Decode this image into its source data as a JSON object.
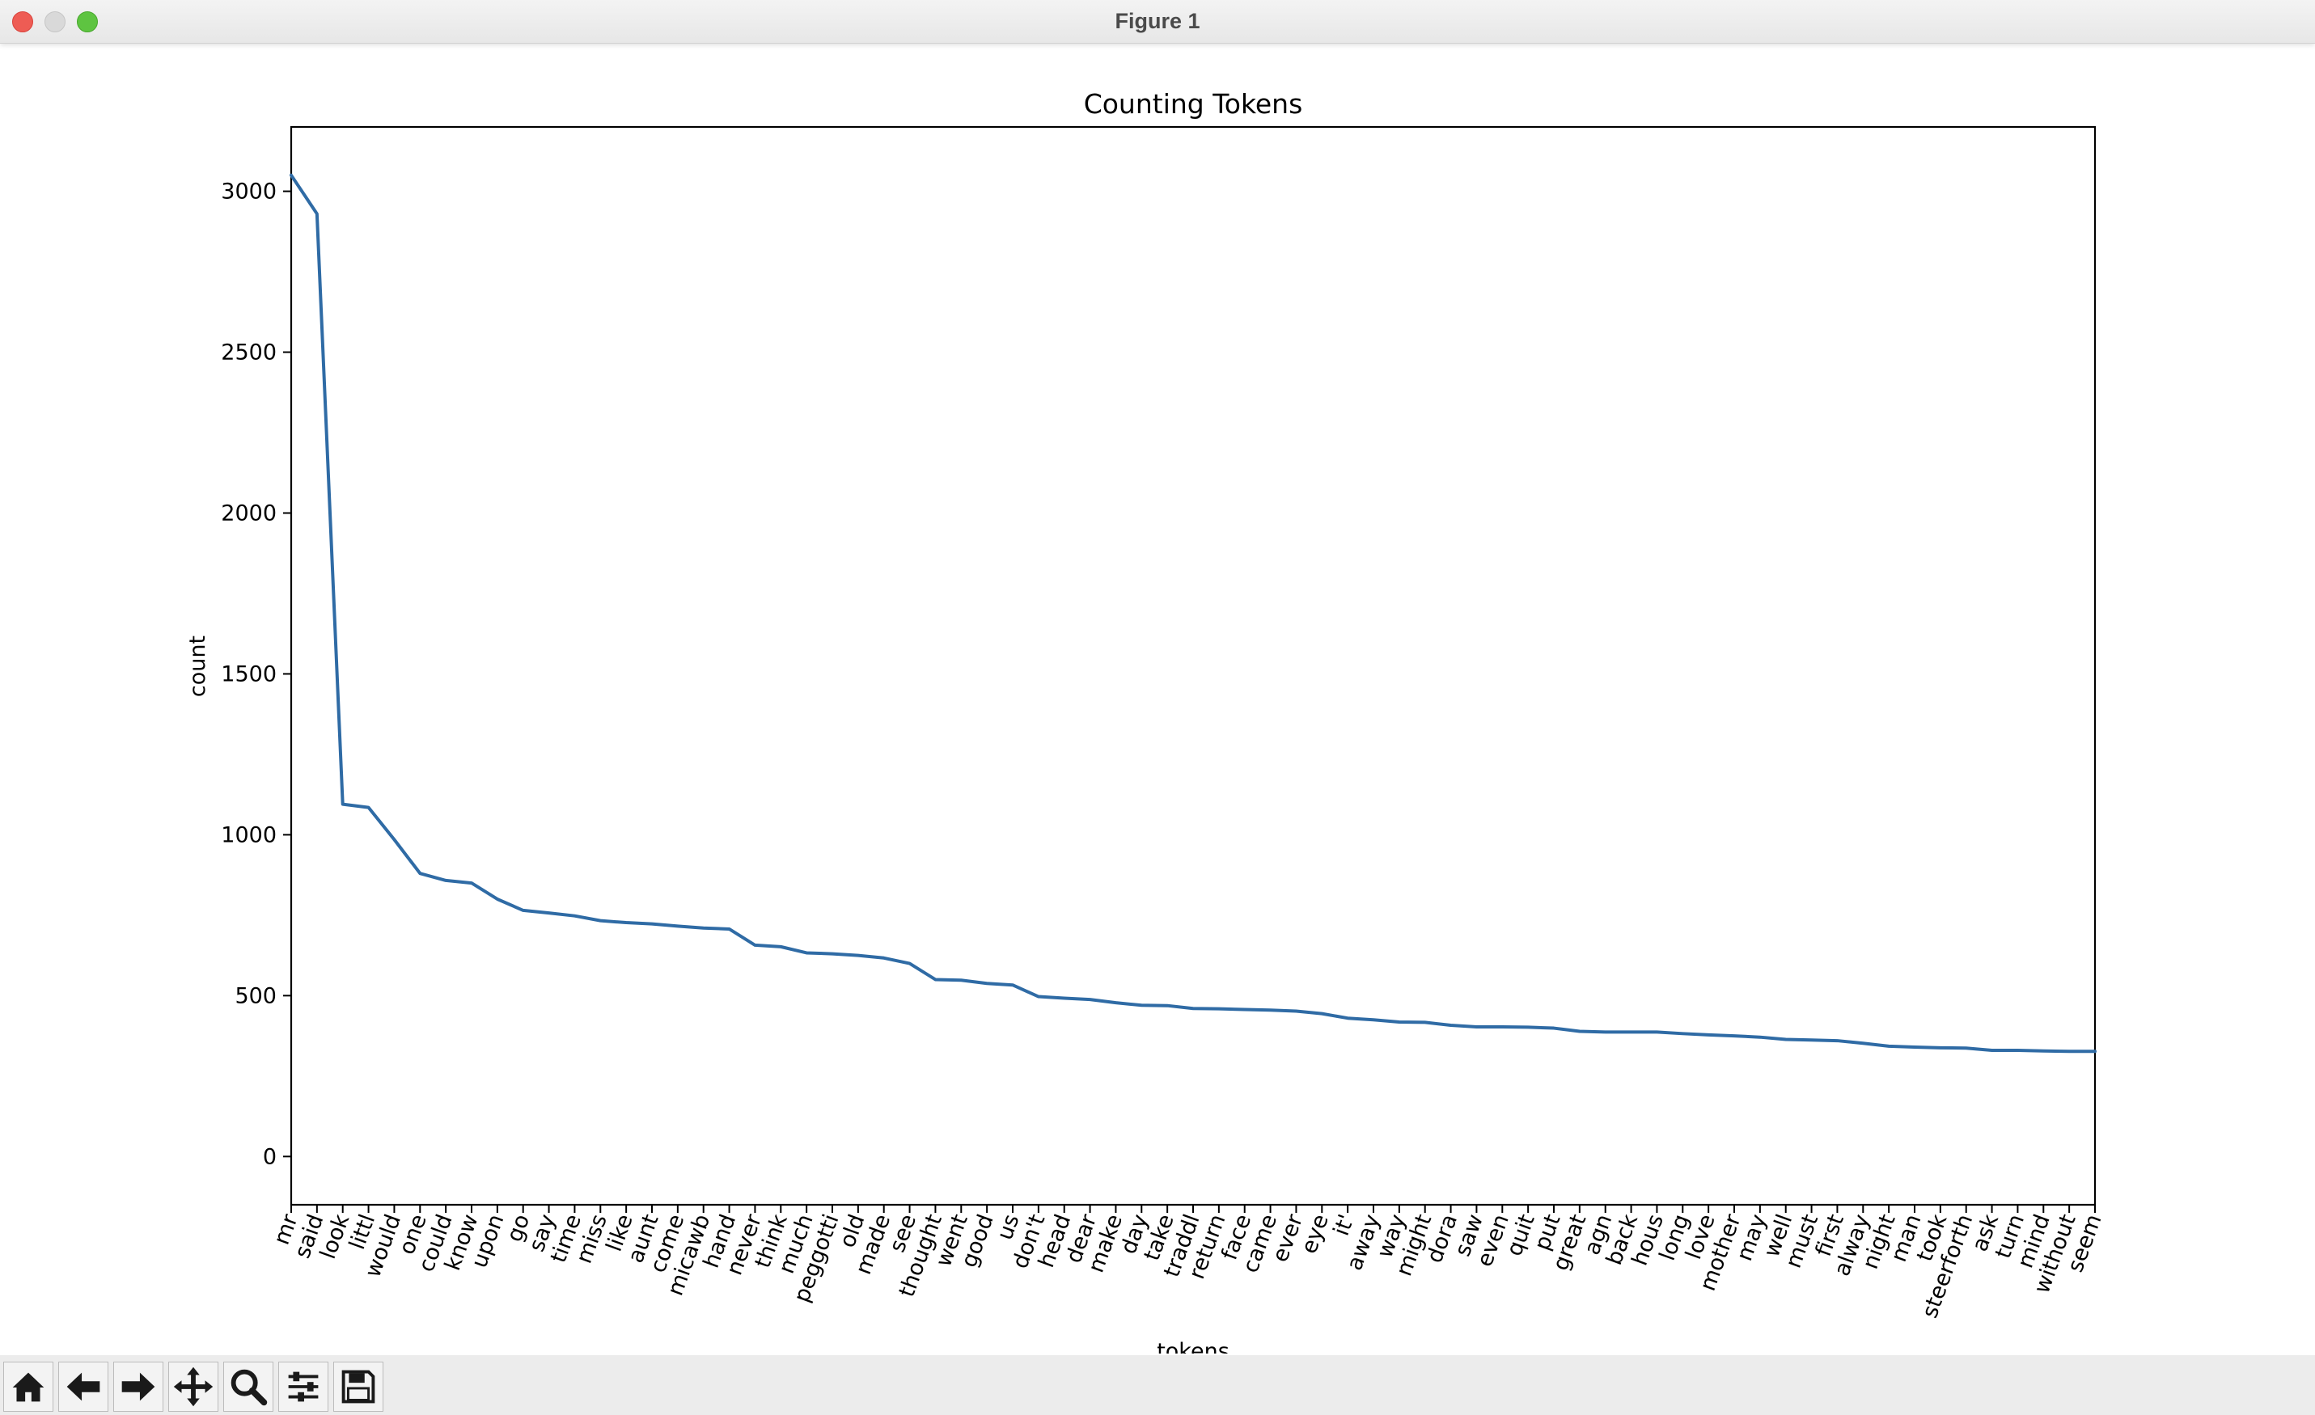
{
  "window": {
    "title": "Figure 1"
  },
  "toolbar": {
    "buttons": [
      {
        "name": "home-button",
        "icon": "home-icon"
      },
      {
        "name": "back-button",
        "icon": "arrow-left-icon"
      },
      {
        "name": "forward-button",
        "icon": "arrow-right-icon"
      },
      {
        "name": "pan-button",
        "icon": "move-icon"
      },
      {
        "name": "zoom-button",
        "icon": "magnifier-icon"
      },
      {
        "name": "configure-subplots-button",
        "icon": "sliders-icon"
      },
      {
        "name": "save-button",
        "icon": "floppy-disk-icon"
      }
    ]
  },
  "chart_data": {
    "type": "line",
    "title": "Counting Tokens",
    "xlabel": "tokens",
    "ylabel": "count",
    "ylim": [
      -150,
      3200
    ],
    "yticks": [
      0,
      500,
      1000,
      1500,
      2000,
      2500,
      3000
    ],
    "grid": false,
    "line_color": "#2f6ba5",
    "categories": [
      "mr",
      "said",
      "look",
      "littl",
      "would",
      "one",
      "could",
      "know",
      "upon",
      "go",
      "say",
      "time",
      "miss",
      "like",
      "aunt",
      "come",
      "micawb",
      "hand",
      "never",
      "think",
      "much",
      "peggotti",
      "old",
      "made",
      "see",
      "thought",
      "went",
      "good",
      "us",
      "don't",
      "head",
      "dear",
      "make",
      "day",
      "take",
      "traddl",
      "return",
      "face",
      "came",
      "ever",
      "eye",
      "it'",
      "away",
      "way",
      "might",
      "dora",
      "saw",
      "even",
      "quit",
      "put",
      "great",
      "agn",
      "back",
      "hous",
      "long",
      "love",
      "mother",
      "may",
      "well",
      "must",
      "first",
      "alway",
      "night",
      "man",
      "took",
      "steerforth",
      "ask",
      "turn",
      "mind",
      "without",
      "seem"
    ],
    "values": [
      3050,
      2930,
      1095,
      1085,
      985,
      880,
      858,
      850,
      800,
      765,
      757,
      748,
      733,
      727,
      723,
      716,
      710,
      707,
      657,
      652,
      633,
      630,
      625,
      617,
      600,
      550,
      548,
      538,
      533,
      497,
      492,
      488,
      478,
      470,
      469,
      460,
      459,
      457,
      455,
      452,
      444,
      430,
      425,
      418,
      417,
      408,
      403,
      403,
      402,
      399,
      389,
      387,
      387,
      387,
      382,
      378,
      375,
      371,
      364,
      362,
      360,
      352,
      343,
      340,
      338,
      337,
      330,
      330,
      328,
      327,
      327
    ]
  }
}
